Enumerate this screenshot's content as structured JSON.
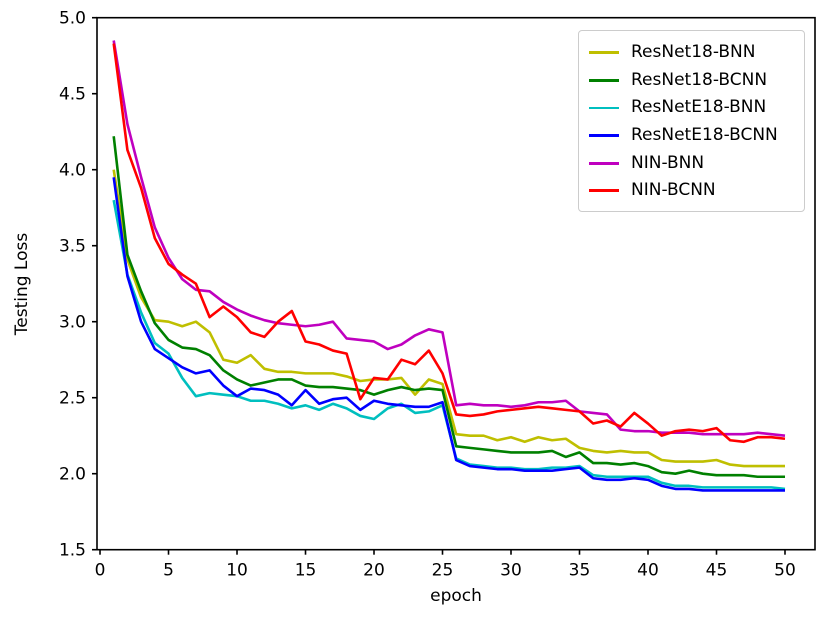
{
  "chart_data": {
    "type": "line",
    "title": "",
    "xlabel": "epoch",
    "ylabel": "Testing Loss",
    "xlim": [
      -0.22,
      52.19
    ],
    "ylim": [
      1.5,
      5.0
    ],
    "xticks": [
      0,
      5,
      10,
      15,
      20,
      25,
      30,
      35,
      40,
      45,
      50
    ],
    "yticks": [
      1.5,
      2.0,
      2.5,
      3.0,
      3.5,
      4.0,
      4.5,
      5.0
    ],
    "grid": false,
    "legend_position": "upper right",
    "x": [
      1,
      2,
      3,
      4,
      5,
      6,
      7,
      8,
      9,
      10,
      11,
      12,
      13,
      14,
      15,
      16,
      17,
      18,
      19,
      20,
      21,
      22,
      23,
      24,
      25,
      26,
      27,
      28,
      29,
      30,
      31,
      32,
      33,
      34,
      35,
      36,
      37,
      38,
      39,
      40,
      41,
      42,
      43,
      44,
      45,
      46,
      47,
      48,
      49,
      50
    ],
    "series": [
      {
        "name": "ResNet18-BNN",
        "color": "#bfbf00",
        "values": [
          4.0,
          3.41,
          3.16,
          3.01,
          3.0,
          2.97,
          3.0,
          2.93,
          2.75,
          2.73,
          2.78,
          2.69,
          2.67,
          2.67,
          2.66,
          2.66,
          2.66,
          2.64,
          2.61,
          2.62,
          2.62,
          2.63,
          2.52,
          2.62,
          2.59,
          2.26,
          2.25,
          2.25,
          2.22,
          2.24,
          2.21,
          2.24,
          2.22,
          2.23,
          2.17,
          2.15,
          2.14,
          2.15,
          2.14,
          2.14,
          2.09,
          2.08,
          2.08,
          2.08,
          2.09,
          2.06,
          2.05,
          2.05,
          2.05,
          2.05
        ]
      },
      {
        "name": "ResNet18-BCNN",
        "color": "#008000",
        "values": [
          4.22,
          3.44,
          3.2,
          2.99,
          2.88,
          2.83,
          2.82,
          2.78,
          2.68,
          2.62,
          2.58,
          2.6,
          2.62,
          2.62,
          2.58,
          2.57,
          2.57,
          2.56,
          2.55,
          2.52,
          2.55,
          2.57,
          2.55,
          2.56,
          2.55,
          2.18,
          2.17,
          2.16,
          2.15,
          2.14,
          2.14,
          2.14,
          2.15,
          2.11,
          2.14,
          2.07,
          2.07,
          2.06,
          2.07,
          2.05,
          2.01,
          2.0,
          2.02,
          2.0,
          1.99,
          1.99,
          1.99,
          1.98,
          1.98,
          1.98
        ]
      },
      {
        "name": "ResNetE18-BNN",
        "color": "#00bfbf",
        "values": [
          3.8,
          3.31,
          3.06,
          2.86,
          2.79,
          2.63,
          2.51,
          2.53,
          2.52,
          2.51,
          2.48,
          2.48,
          2.46,
          2.43,
          2.45,
          2.42,
          2.46,
          2.43,
          2.38,
          2.36,
          2.43,
          2.46,
          2.4,
          2.41,
          2.45,
          2.1,
          2.06,
          2.05,
          2.04,
          2.04,
          2.03,
          2.03,
          2.04,
          2.04,
          2.05,
          1.99,
          1.98,
          1.98,
          1.98,
          1.98,
          1.94,
          1.92,
          1.92,
          1.91,
          1.91,
          1.91,
          1.91,
          1.91,
          1.91,
          1.9
        ]
      },
      {
        "name": "ResNetE18-BCNN",
        "color": "#0000ff",
        "values": [
          3.95,
          3.3,
          3.0,
          2.82,
          2.76,
          2.7,
          2.66,
          2.68,
          2.58,
          2.51,
          2.56,
          2.55,
          2.52,
          2.45,
          2.55,
          2.46,
          2.49,
          2.5,
          2.42,
          2.48,
          2.46,
          2.45,
          2.44,
          2.44,
          2.47,
          2.09,
          2.05,
          2.04,
          2.03,
          2.03,
          2.02,
          2.02,
          2.02,
          2.03,
          2.04,
          1.97,
          1.96,
          1.96,
          1.97,
          1.96,
          1.92,
          1.9,
          1.9,
          1.89,
          1.89,
          1.89,
          1.89,
          1.89,
          1.89,
          1.89
        ]
      },
      {
        "name": "NIN-BNN",
        "color": "#bf00bf",
        "values": [
          4.85,
          4.3,
          3.95,
          3.62,
          3.42,
          3.28,
          3.21,
          3.2,
          3.13,
          3.08,
          3.04,
          3.01,
          2.99,
          2.98,
          2.97,
          2.98,
          3.0,
          2.89,
          2.88,
          2.87,
          2.82,
          2.85,
          2.91,
          2.95,
          2.93,
          2.45,
          2.46,
          2.45,
          2.45,
          2.44,
          2.45,
          2.47,
          2.47,
          2.48,
          2.41,
          2.4,
          2.39,
          2.29,
          2.28,
          2.28,
          2.27,
          2.27,
          2.27,
          2.26,
          2.26,
          2.26,
          2.26,
          2.27,
          2.26,
          2.25
        ]
      },
      {
        "name": "NIN-BCNN",
        "color": "#ff0000",
        "values": [
          4.83,
          4.13,
          3.88,
          3.55,
          3.38,
          3.31,
          3.25,
          3.03,
          3.1,
          3.03,
          2.93,
          2.9,
          3.0,
          3.07,
          2.87,
          2.85,
          2.81,
          2.79,
          2.49,
          2.63,
          2.62,
          2.75,
          2.72,
          2.81,
          2.66,
          2.39,
          2.38,
          2.39,
          2.41,
          2.42,
          2.43,
          2.44,
          2.43,
          2.42,
          2.41,
          2.33,
          2.35,
          2.31,
          2.4,
          2.33,
          2.25,
          2.28,
          2.29,
          2.28,
          2.3,
          2.22,
          2.21,
          2.24,
          2.24,
          2.23
        ]
      }
    ]
  }
}
